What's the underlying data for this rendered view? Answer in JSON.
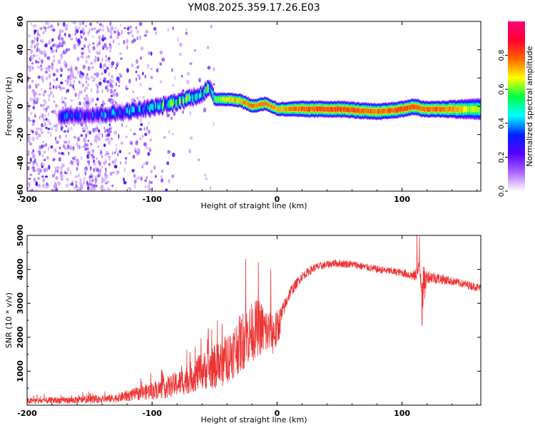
{
  "title": "YM08.2025.359.17.26.E03",
  "colors": {
    "snr_line": "#ee3333",
    "axis": "#000000",
    "background": "#ffffff"
  },
  "chart_data": [
    {
      "type": "heatmap",
      "name": "spectrogram",
      "xlabel": "Height of straight line (km)",
      "ylabel": "Frequency (Hz)",
      "xlim": [
        -200,
        163
      ],
      "ylim": [
        -60,
        60
      ],
      "x_ticks": [
        -200,
        -100,
        0,
        100
      ],
      "y_ticks": [
        -60,
        -40,
        -20,
        0,
        20,
        40,
        60
      ],
      "colorbar": {
        "label": "Normalized spectral amplitude",
        "range": [
          0,
          1
        ],
        "ticks": [
          "0.0",
          "0.2",
          "0.4",
          "0.6",
          "0.8"
        ],
        "colormap": [
          "#ffffff",
          "#aa66ff",
          "#5500ff",
          "#0022ff",
          "#00ffff",
          "#00ff44",
          "#ffff00",
          "#ff6600",
          "#ff0033",
          "#ff0077"
        ]
      },
      "ridge": {
        "x": [
          -175,
          -160,
          -145,
          -130,
          -115,
          -100,
          -85,
          -70,
          -60,
          -55,
          -50,
          -40,
          -30,
          -20,
          -10,
          0,
          20,
          50,
          80,
          100,
          110,
          115,
          130,
          163
        ],
        "freq_hz": [
          -7,
          -6,
          -6,
          -5,
          -3,
          -1,
          2,
          6,
          9,
          13,
          5,
          5,
          4,
          0,
          2,
          -2,
          -2,
          -2,
          -4,
          -2,
          0,
          -2,
          -2,
          -2
        ],
        "amplitude": [
          0.35,
          0.35,
          0.35,
          0.4,
          0.45,
          0.5,
          0.55,
          0.6,
          0.55,
          0.65,
          0.7,
          0.8,
          0.85,
          0.9,
          0.9,
          0.85,
          0.92,
          0.95,
          0.9,
          0.95,
          0.95,
          0.9,
          0.92,
          0.7
        ],
        "halfwidth_hz": [
          3,
          3,
          3,
          3,
          3,
          3,
          3,
          3,
          3,
          3,
          2.5,
          2.5,
          2.5,
          2.5,
          2.5,
          2.5,
          3,
          3,
          3,
          3,
          3,
          3,
          3,
          4
        ]
      },
      "noise_density": {
        "x_edges": [
          -200,
          -130,
          -100,
          -80,
          -50
        ],
        "level": [
          1.0,
          0.5,
          0.15,
          0.08
        ]
      }
    },
    {
      "type": "line",
      "name": "snr",
      "xlabel": "Height of straight line (km)",
      "ylabel": "SNR (10 * v/v)",
      "xlim": [
        -200,
        163
      ],
      "ylim": [
        0,
        5000
      ],
      "x_ticks": [
        -200,
        -100,
        0,
        100
      ],
      "y_ticks": [
        1000,
        2000,
        3000,
        4000,
        5000
      ],
      "envelope": {
        "x": [
          -200,
          -160,
          -130,
          -110,
          -90,
          -75,
          -60,
          -45,
          -35,
          -25,
          -15,
          -5,
          0,
          5,
          10,
          20,
          30,
          45,
          60,
          80,
          100,
          110,
          114,
          117,
          120,
          140,
          163
        ],
        "mean": [
          120,
          150,
          200,
          350,
          500,
          700,
          1000,
          1200,
          1600,
          2000,
          2300,
          2100,
          2200,
          2800,
          3300,
          3800,
          4050,
          4180,
          4150,
          4000,
          3900,
          3800,
          4000,
          3400,
          3800,
          3650,
          3450
        ],
        "noise": [
          90,
          100,
          120,
          200,
          300,
          400,
          550,
          700,
          800,
          900,
          850,
          700,
          600,
          250,
          180,
          130,
          120,
          110,
          110,
          110,
          110,
          160,
          300,
          700,
          200,
          120,
          120
        ]
      }
    }
  ]
}
